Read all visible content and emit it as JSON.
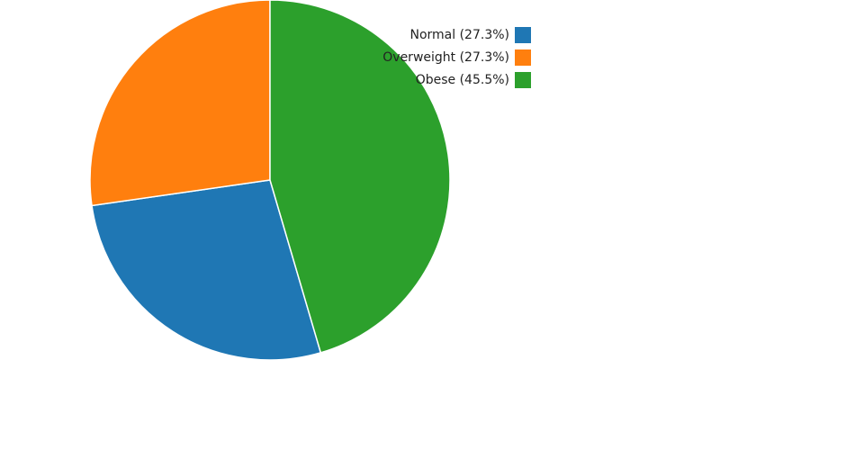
{
  "chart_data": {
    "type": "pie",
    "categories": [
      "Normal (27.3%)",
      "Overweight (27.3%)",
      "Obese (45.5%)"
    ],
    "values": [
      27.3,
      27.3,
      45.5
    ],
    "colors": [
      "#1f77b4",
      "#ff7f0e",
      "#2ca02c"
    ],
    "legend": "top-right"
  }
}
